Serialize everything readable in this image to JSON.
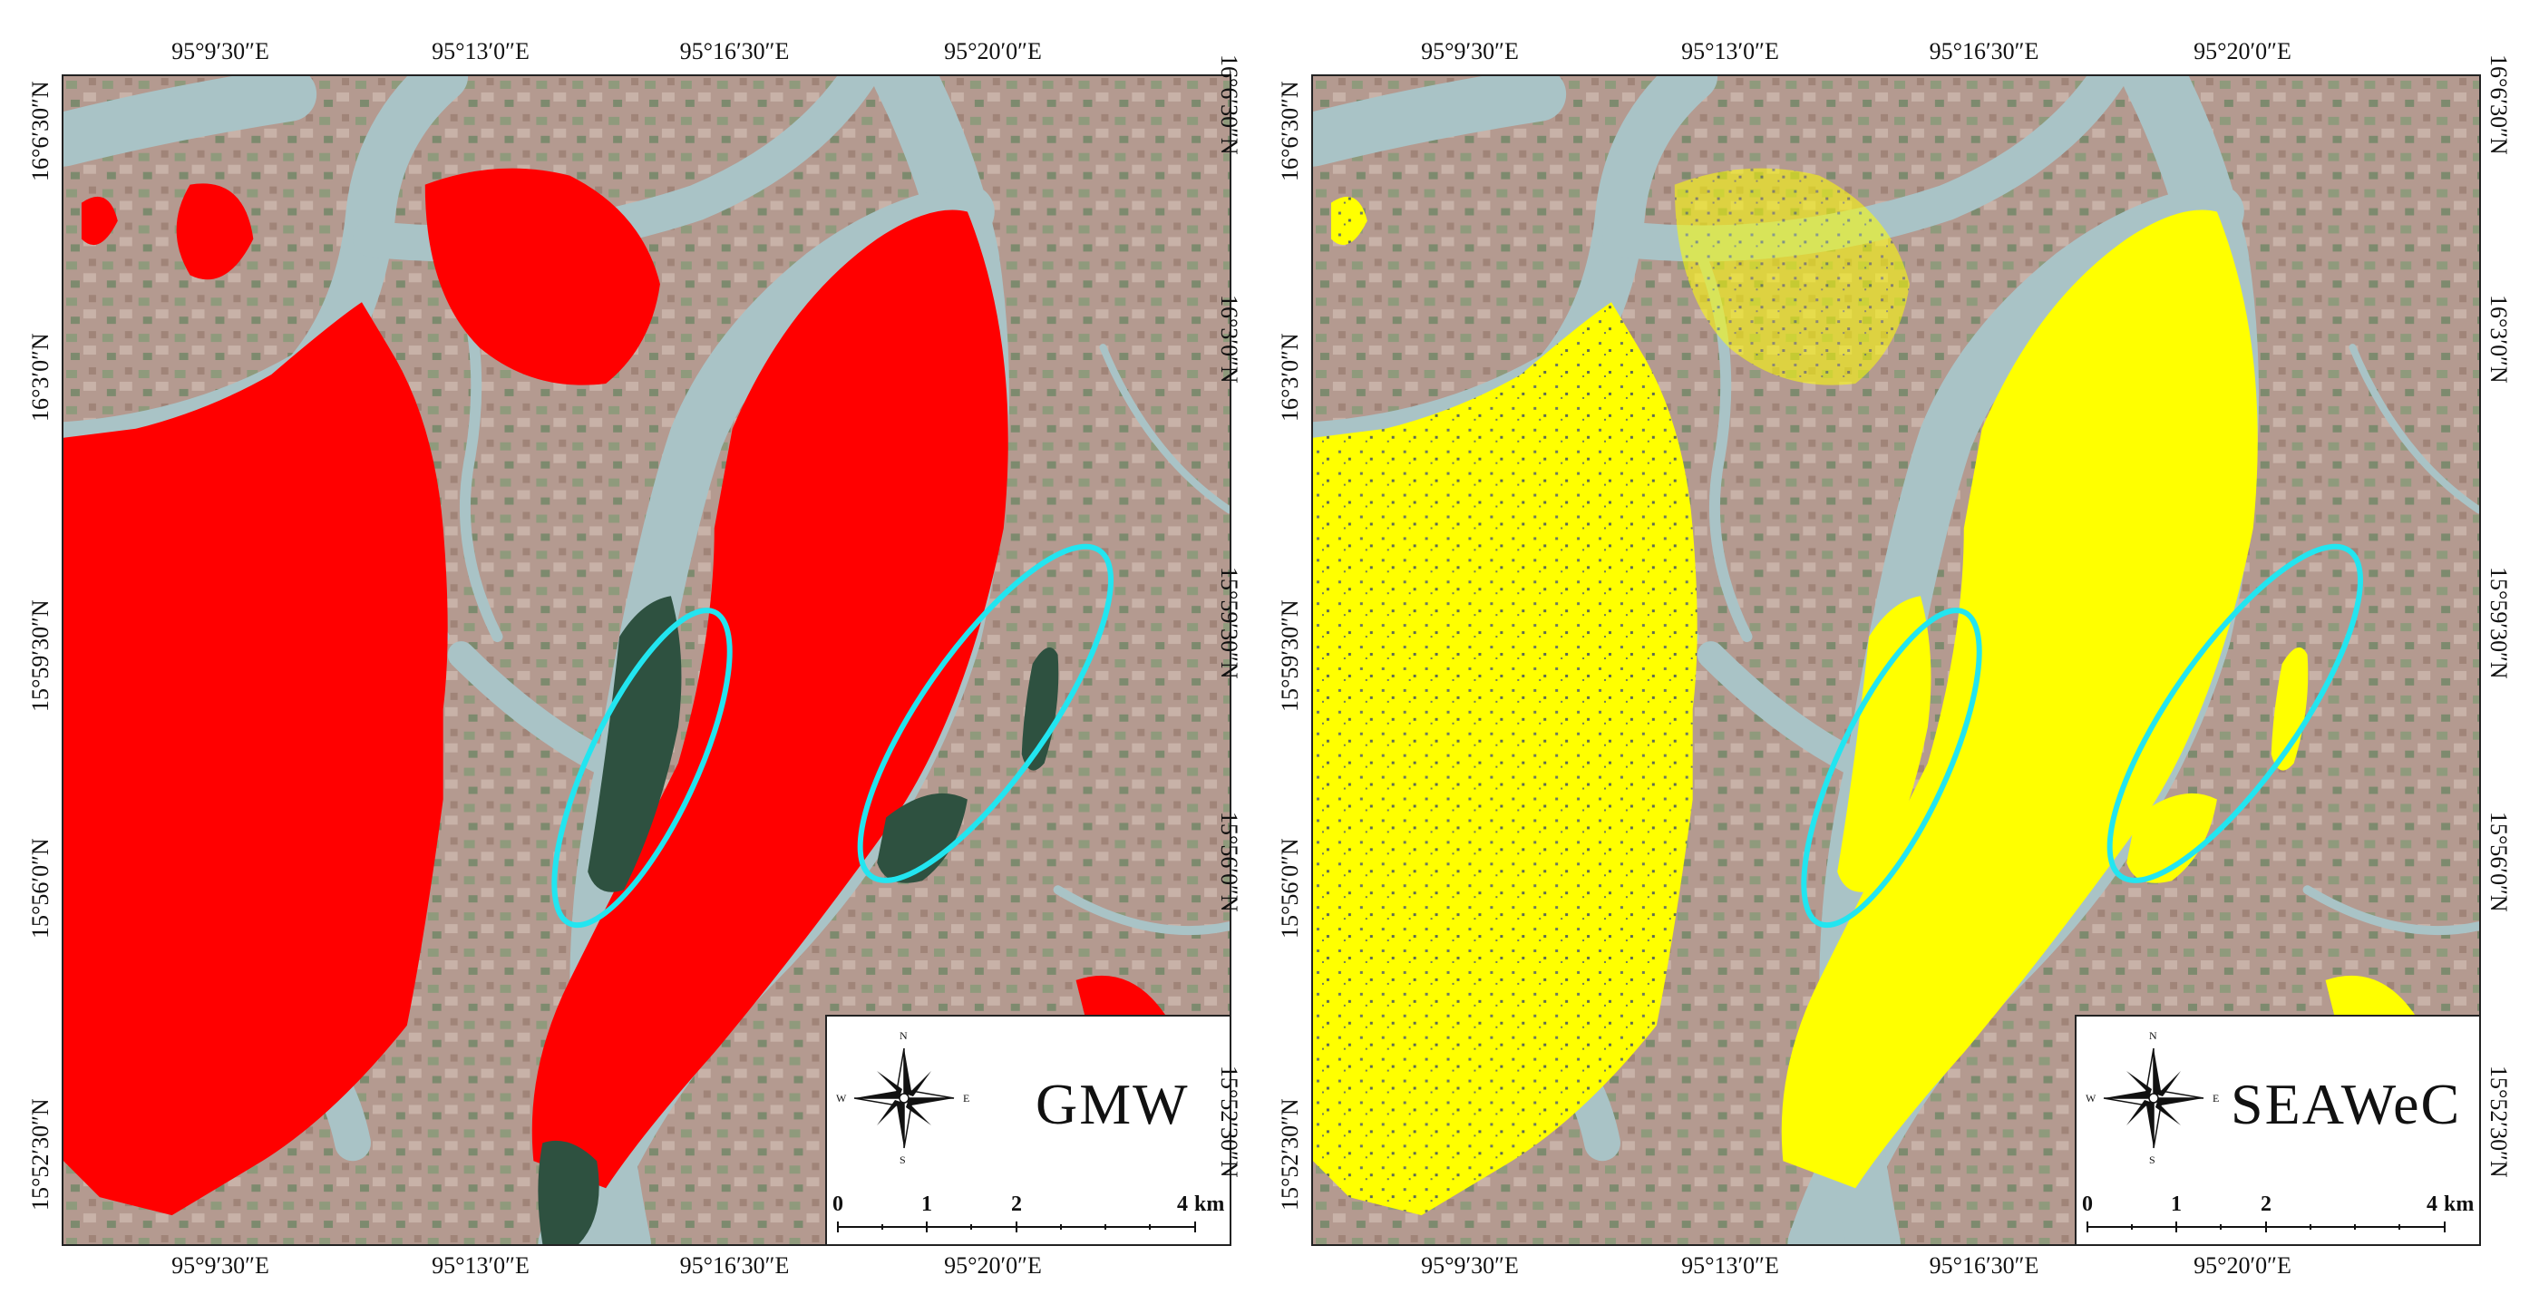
{
  "panels": [
    {
      "title": "GMW",
      "mangrove_color": "#ff0000",
      "x_ticks": [
        "95°9′30″E",
        "95°13′0″E",
        "95°16′30″E",
        "95°20′0″E"
      ],
      "y_ticks": [
        "16°6′30″N",
        "16°3′0″N",
        "15°59′30″N",
        "15°56′0″N",
        "15°52′30″N"
      ]
    },
    {
      "title": "SEAWeC",
      "mangrove_color": "#ffff00",
      "x_ticks": [
        "95°9′30″E",
        "95°13′0″E",
        "95°16′30″E",
        "95°20′0″E"
      ],
      "y_ticks": [
        "16°6′30″N",
        "16°3′0″N",
        "15°59′30″N",
        "15°56′0″N",
        "15°52′30″N"
      ]
    }
  ],
  "north_arrow": {
    "n": "N",
    "s": "S",
    "e": "E",
    "w": "W",
    "icon": "compass-rose-icon"
  },
  "scale_bar": {
    "labels": [
      "0",
      "1",
      "2",
      "4"
    ],
    "unit": "km"
  },
  "highlight_color": "#22e5f0"
}
